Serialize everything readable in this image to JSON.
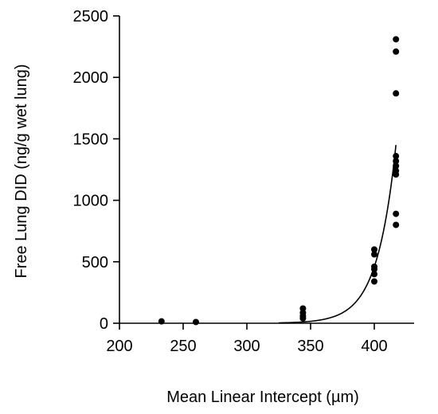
{
  "chart_data": {
    "type": "scatter",
    "title": "",
    "xlabel": "Mean Linear Intercept (µm)",
    "ylabel": "Free Lung DID (ng/g wet lung)",
    "xlim": [
      200,
      430
    ],
    "ylim": [
      0,
      2500
    ],
    "xticks": [
      200,
      250,
      300,
      350,
      400
    ],
    "yticks": [
      0,
      500,
      1000,
      1500,
      2000,
      2500
    ],
    "grid": false,
    "legend": "none",
    "marker_color": "#000000",
    "points": [
      {
        "x": 233,
        "y": 15
      },
      {
        "x": 260,
        "y": 10
      },
      {
        "x": 344,
        "y": 120
      },
      {
        "x": 344,
        "y": 85
      },
      {
        "x": 344,
        "y": 60
      },
      {
        "x": 344,
        "y": 40
      },
      {
        "x": 400,
        "y": 600
      },
      {
        "x": 400,
        "y": 560
      },
      {
        "x": 400,
        "y": 460
      },
      {
        "x": 400,
        "y": 440
      },
      {
        "x": 400,
        "y": 400
      },
      {
        "x": 400,
        "y": 340
      },
      {
        "x": 417,
        "y": 2310
      },
      {
        "x": 417,
        "y": 2210
      },
      {
        "x": 417,
        "y": 1870
      },
      {
        "x": 417,
        "y": 1360
      },
      {
        "x": 417,
        "y": 1320
      },
      {
        "x": 417,
        "y": 1280
      },
      {
        "x": 417,
        "y": 1240
      },
      {
        "x": 417,
        "y": 1210
      },
      {
        "x": 417,
        "y": 890
      },
      {
        "x": 417,
        "y": 800
      }
    ],
    "fit_curve": {
      "type": "exponential",
      "x_start": 325,
      "x_end": 417,
      "y_at_end": 1450,
      "y_at_400": 460
    }
  }
}
